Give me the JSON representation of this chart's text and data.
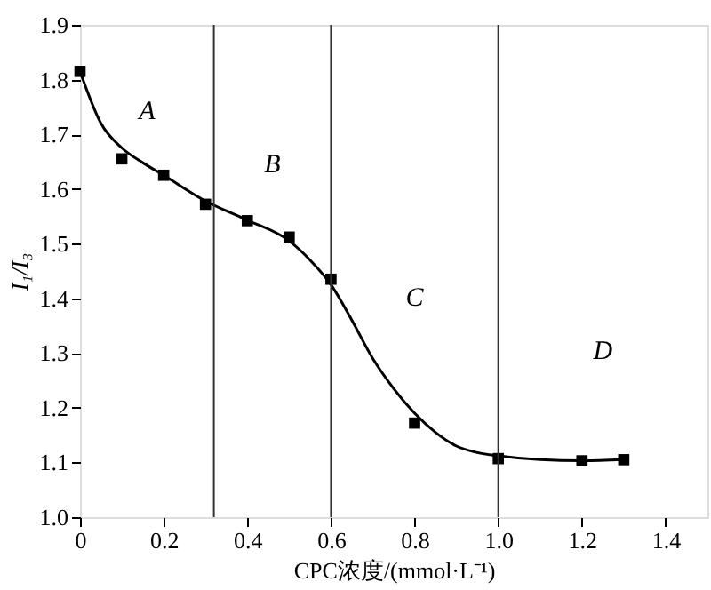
{
  "chart_data": {
    "type": "scatter",
    "xlabel": "CPC浓度/(mmol·L⁻¹)",
    "ylabel": "I₁/I₃",
    "xlim": [
      0,
      1.5
    ],
    "ylim": [
      1.0,
      1.9
    ],
    "xticks": [
      {
        "value": 0,
        "label": "0"
      },
      0.2,
      0.4,
      0.6,
      0.8,
      {
        "value": 1,
        "label": "1.0"
      },
      1.2,
      1.4
    ],
    "yticks": [
      {
        "value": 1,
        "label": "1.0"
      },
      1.1,
      1.2,
      1.3,
      1.4,
      1.5,
      1.6,
      1.7,
      1.8,
      1.9
    ],
    "grid": false,
    "series": [
      {
        "color": "#000000",
        "marker": "square",
        "x": [
          0,
          0.1,
          0.2,
          0.3,
          0.4,
          0.5,
          0.6,
          0.8,
          1.0,
          1.2,
          1.3
        ],
        "values": [
          1.815,
          1.655,
          1.625,
          1.572,
          1.542,
          1.512,
          1.435,
          1.172,
          1.107,
          1.103,
          1.105
        ]
      },
      {
        "type": "line",
        "color": "#000000",
        "marker": "none",
        "x": [
          0,
          0.05,
          0.1,
          0.15,
          0.2,
          0.3,
          0.4,
          0.5,
          0.55,
          0.6,
          0.65,
          0.7,
          0.75,
          0.8,
          0.85,
          0.9,
          0.95,
          1.0,
          1.1,
          1.2,
          1.3
        ],
        "values": [
          1.815,
          1.72,
          1.675,
          1.648,
          1.625,
          1.578,
          1.543,
          1.505,
          1.47,
          1.425,
          1.36,
          1.29,
          1.235,
          1.19,
          1.155,
          1.13,
          1.118,
          1.112,
          1.105,
          1.103,
          1.105
        ]
      }
    ],
    "ref_lines": [
      {
        "axis": "x",
        "value": 0.32,
        "color": "#333333"
      },
      {
        "axis": "x",
        "value": 0.6,
        "color": "#333333"
      },
      {
        "axis": "x",
        "value": 1.0,
        "color": "#333333"
      }
    ],
    "annotations": [
      "A",
      "B",
      "C",
      "D"
    ]
  }
}
